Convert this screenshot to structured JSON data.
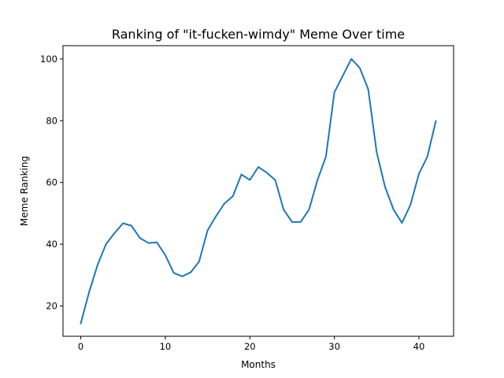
{
  "chart_data": {
    "type": "line",
    "title": "Ranking of \"it-fucken-wimdy\" Meme Over time",
    "xlabel": "Months",
    "ylabel": "Meme Ranking",
    "xlim": [
      -2.1,
      44.1
    ],
    "ylim": [
      10.2,
      104.3
    ],
    "xticks": [
      0,
      10,
      20,
      30,
      40
    ],
    "yticks": [
      20,
      40,
      60,
      80,
      100
    ],
    "grid": false,
    "line_color": "#1f77b4",
    "x": [
      0,
      1,
      2,
      3,
      4,
      5,
      6,
      7,
      8,
      9,
      10,
      11,
      12,
      13,
      14,
      15,
      16,
      17,
      18,
      19,
      20,
      21,
      22,
      23,
      24,
      25,
      26,
      27,
      28,
      29,
      30,
      31,
      32,
      33,
      34,
      35,
      36,
      37,
      38,
      39,
      40,
      41,
      42
    ],
    "y": [
      14.4,
      24.6,
      33.4,
      40.1,
      43.6,
      46.8,
      46.0,
      42.0,
      40.4,
      40.6,
      36.5,
      30.7,
      29.6,
      30.9,
      34.4,
      44.5,
      49.1,
      53.2,
      55.6,
      62.6,
      60.8,
      65.0,
      63.2,
      60.8,
      51.2,
      47.2,
      47.2,
      51.2,
      60.8,
      68.4,
      89.2,
      94.6,
      100.0,
      97.1,
      90.2,
      69.8,
      58.5,
      51.2,
      46.9,
      52.8,
      62.8,
      68.4,
      79.9
    ]
  }
}
